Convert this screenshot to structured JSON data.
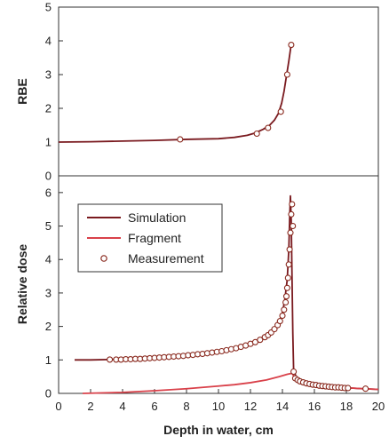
{
  "colors": {
    "simulation": "#7a1a1f",
    "fragment": "#d9414a",
    "measurement": "#8a2a1f",
    "frame": "#333333"
  },
  "chart_data": [
    {
      "type": "line",
      "id": "rbe",
      "title": "",
      "xlabel": "",
      "ylabel": "RBE",
      "xlim": [
        0,
        20
      ],
      "ylim": [
        0,
        5
      ],
      "yticks": [
        0,
        1,
        2,
        3,
        4,
        5
      ],
      "series": [
        {
          "kind": "line",
          "color": "#7a1a1f",
          "x": [
            0,
            2,
            4,
            6,
            8,
            10,
            11,
            11.8,
            12.3,
            12.8,
            13.2,
            13.5,
            13.75,
            13.95,
            14.1,
            14.25,
            14.4,
            14.55
          ],
          "y": [
            1.0,
            1.01,
            1.03,
            1.05,
            1.08,
            1.1,
            1.14,
            1.2,
            1.27,
            1.38,
            1.5,
            1.65,
            1.85,
            2.15,
            2.5,
            2.95,
            3.4,
            3.9
          ]
        },
        {
          "kind": "scatter",
          "color": "#8a2a1f",
          "x": [
            7.6,
            12.4,
            13.1,
            13.9,
            14.3,
            14.55
          ],
          "y": [
            1.08,
            1.25,
            1.42,
            1.9,
            3.0,
            3.88
          ]
        }
      ]
    },
    {
      "type": "line",
      "id": "dose",
      "title": "",
      "xlabel": "Depth in water, cm",
      "ylabel": "Relative dose",
      "xlim": [
        0,
        20
      ],
      "ylim": [
        0,
        6.5
      ],
      "xticks": [
        0,
        2,
        4,
        6,
        8,
        10,
        12,
        14,
        16,
        18,
        20
      ],
      "yticks": [
        0,
        1,
        2,
        3,
        4,
        5,
        6
      ],
      "legend": {
        "placement": "top-left",
        "entries": [
          "Simulation",
          "Fragment",
          "Measurement"
        ]
      },
      "series": [
        {
          "name": "Simulation",
          "kind": "line",
          "color": "#7a1a1f",
          "x": [
            1,
            2,
            4,
            6,
            8,
            10,
            11,
            12,
            12.8,
            13.4,
            13.8,
            14.0,
            14.15,
            14.3,
            14.4,
            14.45,
            14.5,
            14.55,
            14.6,
            14.65,
            14.7,
            14.85,
            15.2,
            16,
            17,
            18,
            19,
            20
          ],
          "y": [
            1.0,
            1.0,
            1.02,
            1.07,
            1.14,
            1.24,
            1.32,
            1.46,
            1.63,
            1.86,
            2.15,
            2.4,
            2.8,
            3.4,
            4.3,
            5.2,
            5.9,
            5.2,
            3.5,
            1.8,
            0.7,
            0.5,
            0.38,
            0.28,
            0.22,
            0.17,
            0.14,
            0.12
          ]
        },
        {
          "name": "Fragment",
          "kind": "line",
          "color": "#d9414a",
          "x": [
            1.5,
            4,
            6,
            8,
            10,
            11,
            12,
            13,
            13.8,
            14.3,
            14.6,
            14.8,
            15.2,
            16,
            17,
            18,
            19,
            20
          ],
          "y": [
            0.0,
            0.03,
            0.08,
            0.14,
            0.22,
            0.26,
            0.32,
            0.4,
            0.5,
            0.57,
            0.6,
            0.45,
            0.35,
            0.27,
            0.21,
            0.17,
            0.14,
            0.12
          ]
        },
        {
          "name": "Measurement",
          "kind": "scatter",
          "color": "#8a2a1f",
          "x": [
            3.2,
            3.6,
            3.9,
            4.2,
            4.5,
            4.8,
            5.1,
            5.4,
            5.7,
            6.0,
            6.3,
            6.6,
            6.9,
            7.2,
            7.5,
            7.8,
            8.1,
            8.4,
            8.7,
            9.0,
            9.3,
            9.6,
            9.9,
            10.2,
            10.5,
            10.8,
            11.1,
            11.4,
            11.7,
            12.0,
            12.3,
            12.6,
            12.9,
            13.1,
            13.3,
            13.5,
            13.7,
            13.85,
            14.0,
            14.1,
            14.2,
            14.25,
            14.3,
            14.35,
            14.4,
            14.45,
            14.5,
            14.55,
            14.6,
            14.65,
            14.7,
            14.8,
            14.95,
            15.1,
            15.3,
            15.5,
            15.7,
            15.9,
            16.1,
            16.3,
            16.5,
            16.7,
            16.9,
            17.1,
            17.3,
            17.5,
            17.7,
            17.9,
            18.1,
            19.2
          ],
          "y": [
            1.01,
            1.01,
            1.01,
            1.02,
            1.02,
            1.03,
            1.03,
            1.04,
            1.05,
            1.06,
            1.07,
            1.08,
            1.09,
            1.1,
            1.11,
            1.12,
            1.14,
            1.15,
            1.17,
            1.18,
            1.2,
            1.22,
            1.24,
            1.26,
            1.29,
            1.32,
            1.35,
            1.39,
            1.43,
            1.48,
            1.53,
            1.6,
            1.68,
            1.74,
            1.82,
            1.92,
            2.04,
            2.16,
            2.32,
            2.5,
            2.72,
            2.9,
            3.15,
            3.45,
            3.85,
            4.3,
            4.8,
            5.35,
            5.65,
            5.0,
            0.65,
            0.45,
            0.4,
            0.36,
            0.33,
            0.3,
            0.28,
            0.26,
            0.25,
            0.23,
            0.22,
            0.21,
            0.2,
            0.19,
            0.18,
            0.18,
            0.17,
            0.16,
            0.16,
            0.14
          ]
        }
      ]
    }
  ]
}
